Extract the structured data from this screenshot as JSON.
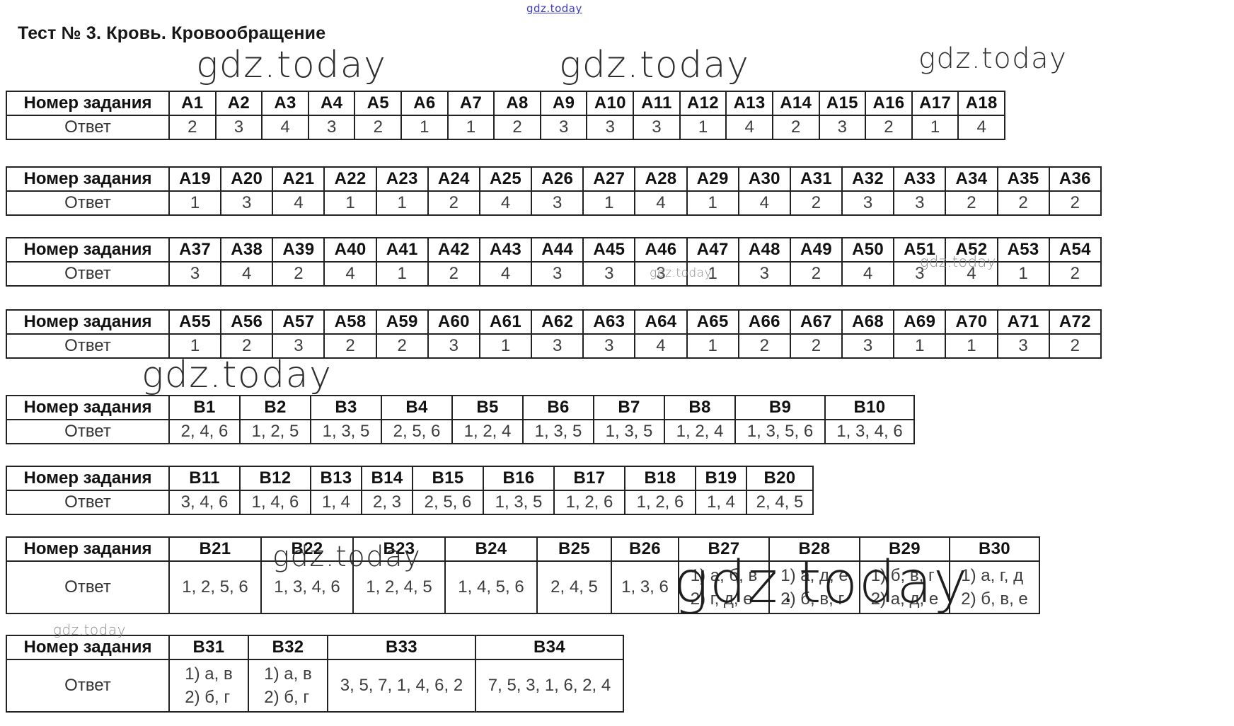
{
  "page": {
    "title": "Тест № 3. Кровь. Кровообращение",
    "row_header_label": "Номер задания",
    "answer_label": "Ответ",
    "watermark": "gdz.today",
    "text_color": "#222222",
    "watermark_color": "#2e2e2e",
    "link_color": "#3b3bc4"
  },
  "tables": [
    {
      "id": "a1-a18",
      "questions": [
        "А1",
        "А2",
        "А3",
        "А4",
        "А5",
        "А6",
        "А7",
        "А8",
        "А9",
        "А10",
        "А11",
        "А12",
        "А13",
        "А14",
        "А15",
        "А16",
        "А17",
        "А18"
      ],
      "answers": [
        "2",
        "3",
        "4",
        "3",
        "2",
        "1",
        "1",
        "2",
        "3",
        "3",
        "3",
        "1",
        "4",
        "2",
        "3",
        "2",
        "1",
        "4"
      ]
    },
    {
      "id": "a19-a36",
      "questions": [
        "А19",
        "А20",
        "А21",
        "А22",
        "А23",
        "А24",
        "А25",
        "А26",
        "А27",
        "А28",
        "А29",
        "А30",
        "А31",
        "А32",
        "А33",
        "А34",
        "А35",
        "А36"
      ],
      "answers": [
        "1",
        "3",
        "4",
        "1",
        "1",
        "2",
        "4",
        "3",
        "1",
        "4",
        "1",
        "4",
        "2",
        "3",
        "3",
        "2",
        "2",
        "2"
      ]
    },
    {
      "id": "a37-a54",
      "questions": [
        "А37",
        "А38",
        "А39",
        "А40",
        "А41",
        "А42",
        "А43",
        "А44",
        "А45",
        "А46",
        "А47",
        "А48",
        "А49",
        "А50",
        "А51",
        "А52",
        "А53",
        "А54"
      ],
      "answers": [
        "3",
        "4",
        "2",
        "4",
        "1",
        "2",
        "4",
        "3",
        "3",
        "3",
        "1",
        "3",
        "2",
        "4",
        "3",
        "4",
        "1",
        "2"
      ]
    },
    {
      "id": "a55-a72",
      "questions": [
        "А55",
        "А56",
        "А57",
        "А58",
        "А59",
        "А60",
        "А61",
        "А62",
        "А63",
        "А64",
        "А65",
        "А66",
        "А67",
        "А68",
        "А69",
        "А70",
        "А71",
        "А72"
      ],
      "answers": [
        "1",
        "2",
        "3",
        "2",
        "2",
        "3",
        "1",
        "3",
        "3",
        "4",
        "1",
        "2",
        "2",
        "3",
        "1",
        "1",
        "3",
        "2"
      ]
    },
    {
      "id": "b1-b10",
      "questions": [
        "В1",
        "В2",
        "В3",
        "В4",
        "В5",
        "В6",
        "В7",
        "В8",
        "В9",
        "В10"
      ],
      "answers": [
        "2, 4, 6",
        "1, 2, 5",
        "1, 3, 5",
        "2, 5, 6",
        "1, 2, 4",
        "1, 3, 5",
        "1, 3, 5",
        "1, 2, 4",
        "1, 3, 5, 6",
        "1, 3, 4, 6"
      ]
    },
    {
      "id": "b11-b20",
      "questions": [
        "В11",
        "В12",
        "В13",
        "В14",
        "В15",
        "В16",
        "В17",
        "В18",
        "В19",
        "В20"
      ],
      "answers": [
        "3, 4, 6",
        "1, 4, 6",
        "1, 4",
        "2, 3",
        "2, 5, 6",
        "1, 3, 5",
        "1, 2, 6",
        "1, 2, 6",
        "1, 4",
        "2, 4, 5"
      ]
    },
    {
      "id": "b21-b30",
      "questions": [
        "В21",
        "В22",
        "В23",
        "В24",
        "В25",
        "В26",
        "В27",
        "В28",
        "В29",
        "В30"
      ],
      "answers": [
        "1, 2, 5, 6",
        "1, 3, 4, 6",
        "1, 2, 4, 5",
        "1, 4, 5, 6",
        "2, 4, 5",
        "1, 3, 6",
        [
          "1) а, б, в",
          "2) г, д, е"
        ],
        [
          "1) а, д, е",
          "2) б, в, г"
        ],
        [
          "1) б, в, г",
          "2) а, д, е"
        ],
        [
          "1) а, г, д",
          "2) б, в, е"
        ]
      ]
    },
    {
      "id": "b31-b34",
      "questions": [
        "В31",
        "В32",
        "В33",
        "В34"
      ],
      "answers": [
        [
          "1) а, в",
          "2) б, г"
        ],
        [
          "1) а, в",
          "2) б, г"
        ],
        "3, 5, 7, 1, 4, 6, 2",
        "7, 5, 3, 1, 6, 2, 4"
      ]
    }
  ]
}
